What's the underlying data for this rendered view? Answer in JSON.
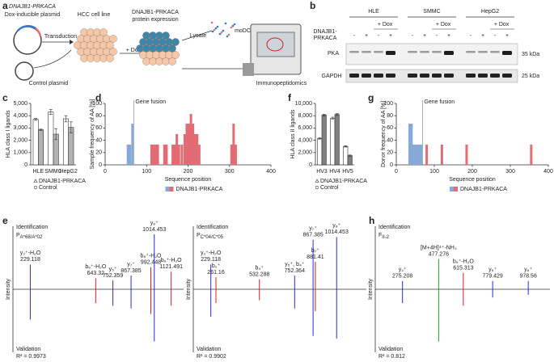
{
  "panel_labels": [
    "a",
    "b",
    "c",
    "d",
    "e",
    "f",
    "g",
    "h"
  ],
  "schematic": {
    "plasmid": "DNAJB1-PRKACA",
    "plasmid_note": "Dox-inducible plasmid",
    "control": "Control plasmid",
    "transduction": "Transduction",
    "cell_line": "HCC cell line",
    "expression": [
      "DNAJB1-PRKACA",
      "protein expression"
    ],
    "dox": "+ Dox",
    "lysate": "Lysate",
    "modc": "moDC",
    "method": "Immunopeptidomics"
  },
  "blot": {
    "groups": [
      "HLE",
      "SMMC",
      "HepG2"
    ],
    "dox": "+ Dox",
    "row_label": [
      "DNAJB1-",
      "PRKACA"
    ],
    "lanes": [
      "-",
      "+",
      "-",
      "+"
    ],
    "bands": [
      "PKA",
      "GAPDH"
    ],
    "markers": [
      "35 kDa",
      "25 kDa"
    ]
  },
  "chart_data": [
    {
      "type": "bar",
      "ylabel": "HLA class I ligands",
      "categories": [
        "HLE",
        "SMMC",
        "HepG2"
      ],
      "ylim": [
        0,
        5000
      ],
      "yticks": [
        0,
        {
          "value": 1000,
          "label": "1,000"
        },
        {
          "value": 2000,
          "label": "2,000"
        },
        {
          "value": 3000,
          "label": "3,000"
        },
        {
          "value": 4000,
          "label": "4,000"
        },
        {
          "value": 5000,
          "label": "5,000"
        }
      ],
      "series": [
        {
          "name": "DNAJB1-PRKACA",
          "color": "#ffffff",
          "values": [
            3700,
            4300,
            3750
          ],
          "errors": [
            80,
            200,
            250
          ]
        },
        {
          "name": "Control",
          "color": "#b3b3b3",
          "values": [
            2850,
            2500,
            3050
          ],
          "errors": [
            60,
            450,
            450
          ]
        }
      ]
    },
    {
      "type": "column",
      "ylabel": "Sample frequency of AA [%]",
      "xlabel": "Sequence position",
      "xlim": [
        0,
        400
      ],
      "xticks": [
        0,
        100,
        200,
        300,
        400
      ],
      "ylim": [
        0,
        100
      ],
      "yticks": [
        0,
        20,
        40,
        60,
        80,
        100
      ],
      "annotation": "Gene fusion",
      "annotation_x": 69,
      "legend": "DNAJB1-PRKACA",
      "series": [
        {
          "color": "#86a9d8",
          "x": [
            55,
            60,
            66
          ],
          "values": [
            33,
            33,
            67
          ]
        },
        {
          "color": "#e26b74",
          "x": [
            112,
            117,
            122,
            127,
            143,
            148,
            163,
            168,
            173,
            178,
            185,
            192,
            197,
            202,
            207,
            212,
            217,
            222,
            227,
            305,
            310,
            315
          ],
          "values": [
            33,
            33,
            33,
            33,
            33,
            33,
            33,
            33,
            50,
            33,
            33,
            50,
            67,
            67,
            83,
            67,
            50,
            50,
            33,
            33,
            67,
            33
          ]
        }
      ]
    },
    {
      "type": "bar",
      "ylabel": "HLA class II ligands",
      "categories": [
        "HV3",
        "HV4",
        "HV5"
      ],
      "ylim": [
        0,
        10000
      ],
      "yticks": [
        0,
        {
          "value": 2000,
          "label": "2,000"
        },
        {
          "value": 4000,
          "label": "4,000"
        },
        {
          "value": 6000,
          "label": "6,000"
        },
        {
          "value": 8000,
          "label": "8,000"
        },
        {
          "value": 10000,
          "label": "10,000"
        }
      ],
      "series": [
        {
          "name": "DNAJB1-PRKACA",
          "color": "#ffffff",
          "values": [
            4300,
            7600,
            3000
          ],
          "errors": [
            100,
            150,
            100
          ]
        },
        {
          "name": "Control",
          "color": "#808080",
          "values": [
            8100,
            8200,
            1500
          ],
          "errors": [
            150,
            150,
            100
          ]
        }
      ]
    },
    {
      "type": "column",
      "ylabel": "Donor frequency of AA [%]",
      "xlabel": "Sequence position",
      "xlim": [
        0,
        400
      ],
      "xticks": [
        0,
        100,
        200,
        300,
        400
      ],
      "ylim": [
        0,
        100
      ],
      "yticks": [
        0,
        20,
        40,
        60,
        80,
        100
      ],
      "annotation": "Gene fusion",
      "annotation_x": 69,
      "legend": "DNAJB1-PRKACA",
      "series": [
        {
          "color": "#86a9d8",
          "x": [
            35,
            40,
            45,
            50,
            55,
            60,
            65
          ],
          "values": [
            67,
            67,
            33,
            33,
            33,
            33,
            33
          ]
        },
        {
          "color": "#e26b74",
          "x": [
            80,
            120,
            185,
            355
          ],
          "values": [
            33,
            33,
            33,
            33
          ]
        }
      ]
    },
    {
      "type": "spectrum",
      "title": "Identification",
      "allotype": "P",
      "allotype_sub": "A*68/A*02",
      "ylabel": "Intensity",
      "validation": "Validation",
      "score": "R² = 0.9973",
      "xlim": [
        150,
        1200
      ],
      "ylim": [
        -100,
        100
      ],
      "peaks": [
        {
          "ion": "y₂⁺-H₂O",
          "mz": 229.118,
          "intensity": 45,
          "mirror": -55,
          "color": "#2a2ad6"
        },
        {
          "ion": "b₆⁺-H₂O",
          "mz": 643.32,
          "intensity": 20,
          "mirror": -25,
          "color": "#d02020"
        },
        {
          "ion": "y₅⁺",
          "mz": 752.359,
          "intensity": 16,
          "mirror": -30,
          "color": "#2a2ad6"
        },
        {
          "ion": "y₇⁺",
          "mz": 867.385,
          "intensity": 25,
          "mirror": -35,
          "color": "#2a2ad6"
        },
        {
          "ion": "b₈⁺-H₂O",
          "mz": 992.448,
          "intensity": 40,
          "mirror": -45,
          "color": "#d02020"
        },
        {
          "ion": "y₈⁺",
          "mz": 1014.453,
          "intensity": 100,
          "mirror": -95,
          "color": "#2a2ad6"
        },
        {
          "ion": "b₉⁺-H₂O",
          "mz": 1121.491,
          "intensity": 32,
          "mirror": -30,
          "color": "#d02020"
        }
      ]
    },
    {
      "type": "spectrum",
      "title": "Identification",
      "allotype": "P",
      "allotype_sub": "C*04/C*05",
      "ylabel": "Intensity",
      "validation": "Validation",
      "score": "R² = 0.9902",
      "xlim": [
        150,
        1200
      ],
      "ylim": [
        -100,
        100
      ],
      "peaks": [
        {
          "ion": "y₂⁺-H₂O",
          "mz": 229.118,
          "intensity": 45,
          "mirror": -50,
          "color": "#2a2ad6"
        },
        {
          "ion": "b₂⁺",
          "mz": 261.16,
          "intensity": 22,
          "mirror": -25,
          "color": "#d02020"
        },
        {
          "ion": "b₄⁺",
          "mz": 532.288,
          "intensity": 18,
          "mirror": -20,
          "color": "#d02020"
        },
        {
          "ion": "y₅⁺, b₄⁺",
          "mz": 752.364,
          "intensity": 25,
          "mirror": -35,
          "color": "#2a2ad6"
        },
        {
          "ion": "y₇⁺",
          "mz": 867.385,
          "intensity": 90,
          "mirror": -85,
          "color": "#2a2ad6"
        },
        {
          "ion": "b₇⁺",
          "mz": 881.41,
          "intensity": 50,
          "mirror": -40,
          "color": "#d02020"
        },
        {
          "ion": "y₈⁺",
          "mz": 1014.453,
          "intensity": 95,
          "mirror": -90,
          "color": "#2a2ad6"
        }
      ]
    },
    {
      "type": "spectrum",
      "title": "Identification",
      "allotype": "F",
      "allotype_sub": "II-2",
      "ylabel": "Intensity",
      "validation": "Validation",
      "score": "R² = 0.812",
      "xlim": [
        150,
        1100
      ],
      "ylim": [
        -100,
        100
      ],
      "peaks": [
        {
          "ion": "y₂⁺",
          "mz": 275.208,
          "intensity": 15,
          "mirror": -25,
          "color": "#2a2ad6"
        },
        {
          "ion": "[M+4H]⁴⁺-NH₃",
          "mz": 477.276,
          "intensity": 55,
          "mirror": -95,
          "color": "#2a9a2a"
        },
        {
          "ion": "b₅⁺-H₂O",
          "mz": 615.313,
          "intensity": 30,
          "mirror": -30,
          "color": "#d02020"
        },
        {
          "ion": "y₅⁺",
          "mz": 779.429,
          "intensity": 15,
          "mirror": -15,
          "color": "#2a2ad6"
        },
        {
          "ion": "y₆⁺",
          "mz": 978.56,
          "intensity": 15,
          "mirror": -10,
          "color": "#2a2ad6"
        }
      ]
    }
  ]
}
